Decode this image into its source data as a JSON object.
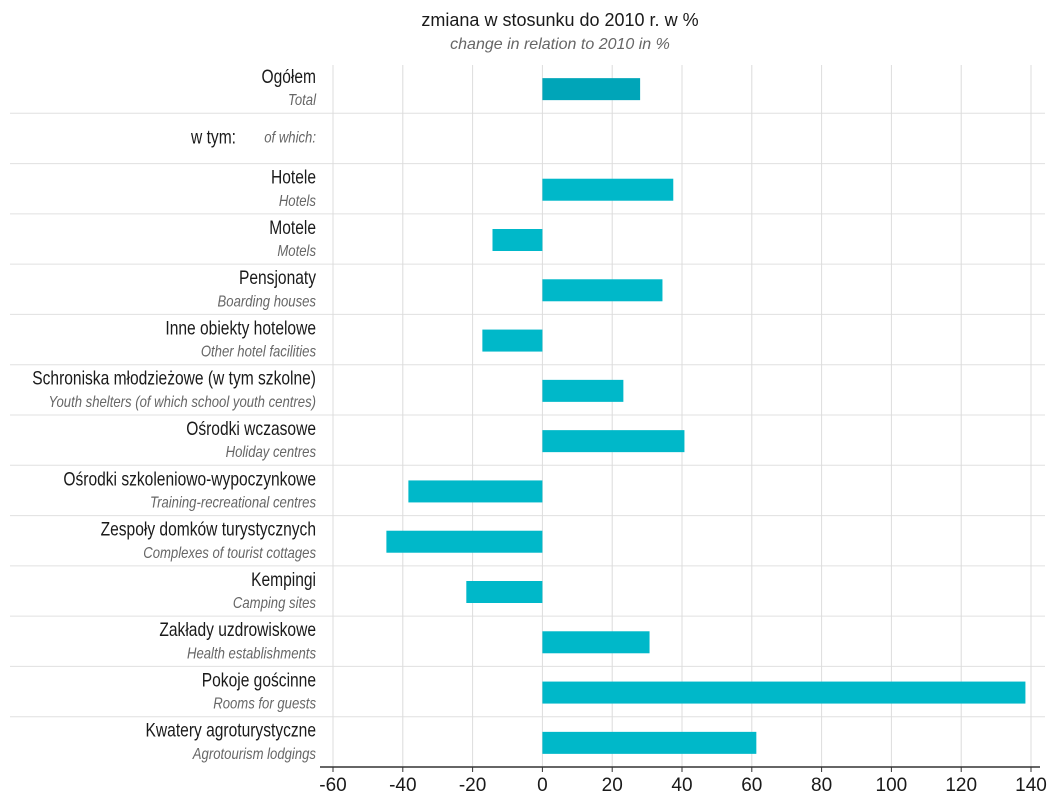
{
  "chart_data": {
    "type": "barh",
    "title": "zmiana w stosunku do 2010 r. w %",
    "subtitle": "change in relation to 2010 in %",
    "categories": [
      "Ogółem",
      "w tym:",
      "Hotele",
      "Motele",
      "Pensjonaty",
      "Inne obiekty hotelowe",
      "Schroniska młodzieżowe (w tym szkolne)",
      "Ośrodki wczasowe",
      "Ośrodki szkoleniowo-wypoczynkowe",
      "Zespoły domków turystycznych",
      "Kempingi",
      "Zakłady uzdrowiskowe",
      "Pokoje gościnne",
      "Kwatery agroturystyczne"
    ],
    "categories_en": [
      "Total",
      "of which:",
      "Hotels",
      "Motels",
      "Boarding houses",
      "Other hotel facilities",
      "Youth shelters (of which school youth centres)",
      "Holiday centres",
      "Training-recreational centres",
      "Complexes of tourist cottages",
      "Camping sites",
      "Health establishments",
      "Rooms for guests",
      "Agrotourism lodgings"
    ],
    "values": [
      28,
      null,
      37.5,
      -14.3,
      34.4,
      -17.2,
      23.2,
      40.7,
      -38.4,
      -44.7,
      -21.8,
      30.7,
      138.4,
      61.3
    ],
    "colors": [
      "#00a5b8",
      null,
      "#00b8c9",
      "#00b8c9",
      "#00b8c9",
      "#00b8c9",
      "#00b8c9",
      "#00b8c9",
      "#00b8c9",
      "#00b8c9",
      "#00b8c9",
      "#00b8c9",
      "#00b8c9",
      "#00b8c9"
    ],
    "xlim": [
      -60,
      140
    ],
    "xticks": [
      -60,
      -40,
      -20,
      0,
      20,
      40,
      60,
      80,
      100,
      120,
      140
    ],
    "grid": true
  }
}
